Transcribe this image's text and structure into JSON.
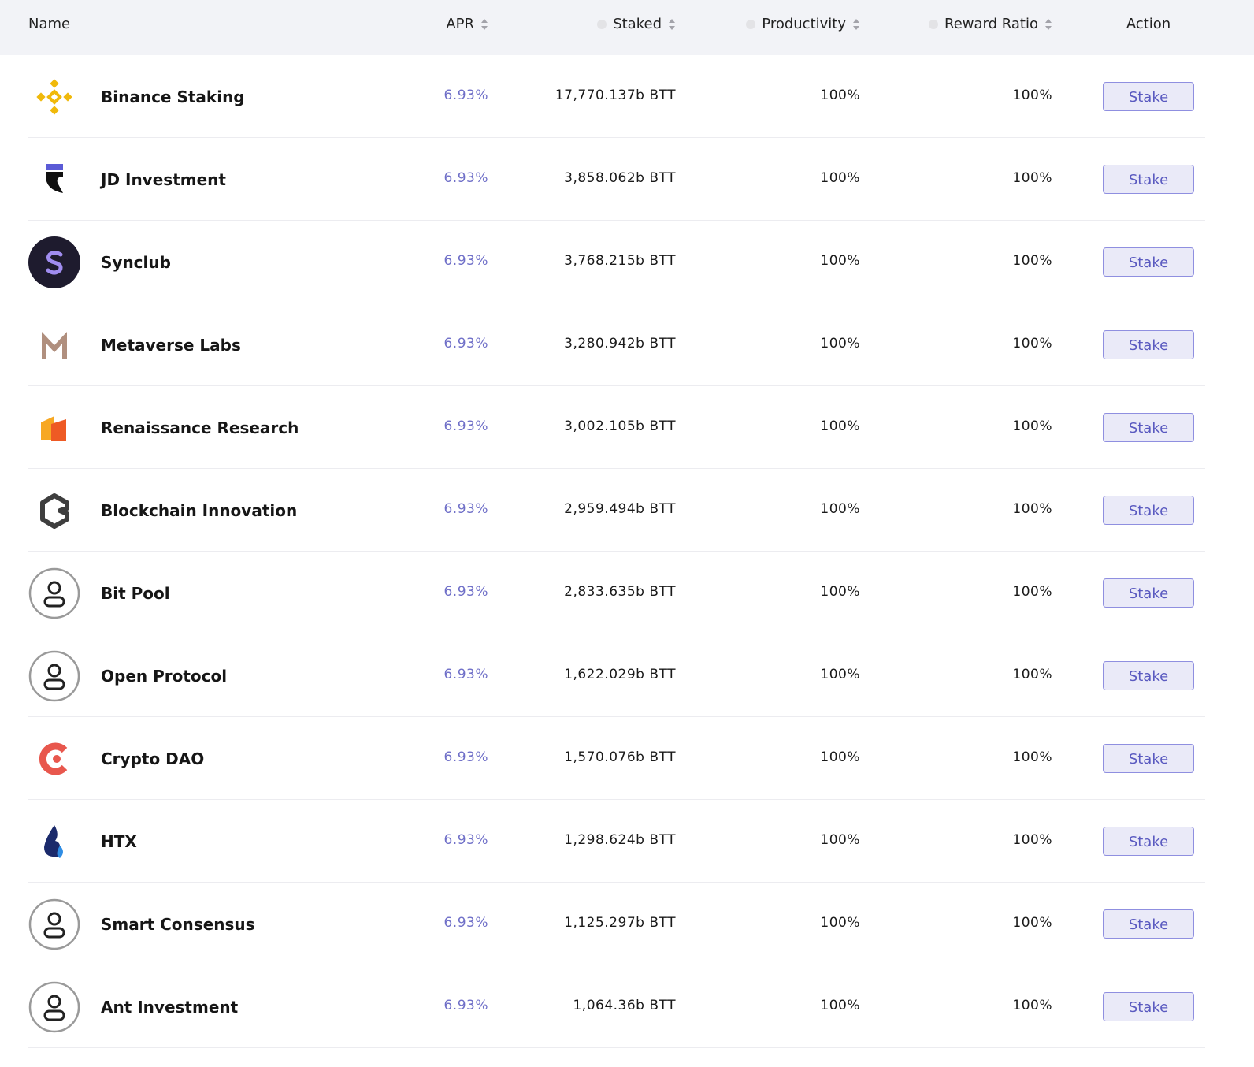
{
  "table": {
    "columns": [
      "Name",
      "APR",
      "Staked",
      "Productivity",
      "Reward Ratio",
      "Action"
    ],
    "rows": [
      [
        "Binance Staking",
        "6.93%",
        "17,770.137b BTT",
        "100%",
        "100%",
        "Stake"
      ],
      [
        "JD Investment",
        "6.93%",
        "3,858.062b BTT",
        "100%",
        "100%",
        "Stake"
      ],
      [
        "Synclub",
        "6.93%",
        "3,768.215b BTT",
        "100%",
        "100%",
        "Stake"
      ],
      [
        "Metaverse Labs",
        "6.93%",
        "3,280.942b BTT",
        "100%",
        "100%",
        "Stake"
      ],
      [
        "Renaissance Research",
        "6.93%",
        "3,002.105b BTT",
        "100%",
        "100%",
        "Stake"
      ],
      [
        "Blockchain Innovation",
        "6.93%",
        "2,959.494b BTT",
        "100%",
        "100%",
        "Stake"
      ],
      [
        "Bit Pool",
        "6.93%",
        "2,833.635b BTT",
        "100%",
        "100%",
        "Stake"
      ],
      [
        "Open Protocol",
        "6.93%",
        "1,622.029b BTT",
        "100%",
        "100%",
        "Stake"
      ],
      [
        "Crypto DAO",
        "6.93%",
        "1,570.076b BTT",
        "100%",
        "100%",
        "Stake"
      ],
      [
        "HTX",
        "6.93%",
        "1,298.624b BTT",
        "100%",
        "100%",
        "Stake"
      ],
      [
        "Smart Consensus",
        "6.93%",
        "1,125.297b BTT",
        "100%",
        "100%",
        "Stake"
      ],
      [
        "Ant Investment",
        "6.93%",
        "1,064.36b BTT",
        "100%",
        "100%",
        "Stake"
      ]
    ]
  }
}
